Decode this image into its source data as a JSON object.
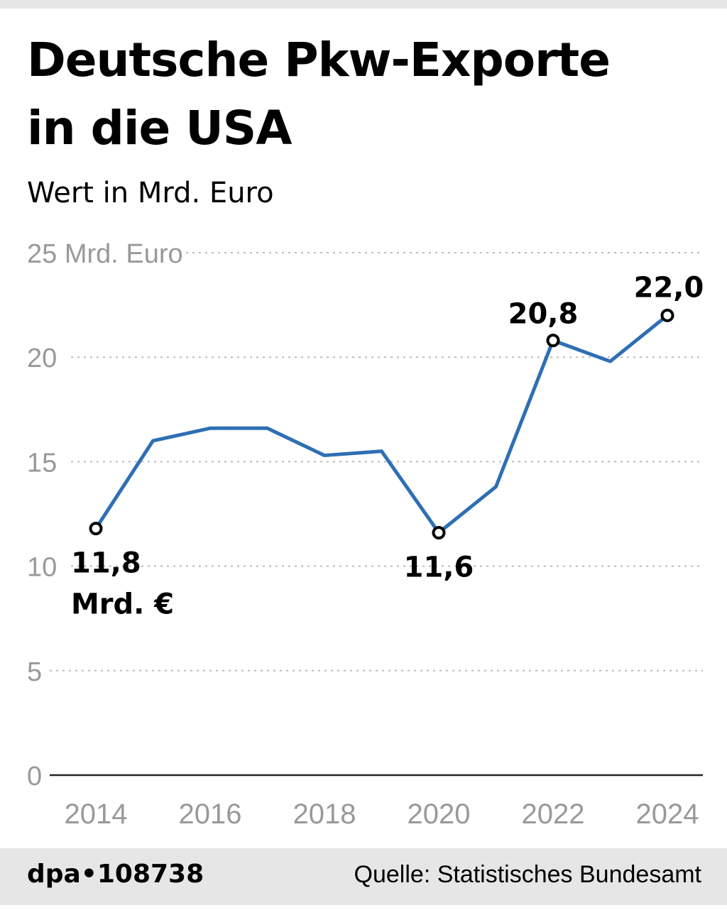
{
  "header": {
    "title_line1": "Deutsche Pkw-Exporte",
    "title_line2": "in die USA",
    "subtitle": "Wert in Mrd. Euro"
  },
  "footer": {
    "credit": "dpa•108738",
    "source": "Quelle: Statistisches Bundesamt"
  },
  "chart_data": {
    "type": "line",
    "title": "Deutsche Pkw-Exporte in die USA",
    "subtitle": "Wert in Mrd. Euro",
    "x": [
      2014,
      2015,
      2016,
      2017,
      2018,
      2019,
      2020,
      2021,
      2022,
      2023,
      2024
    ],
    "series": [
      {
        "values": [
          11.8,
          16.0,
          16.6,
          16.6,
          15.3,
          15.5,
          11.6,
          13.8,
          20.8,
          19.8,
          22.0
        ],
        "color": "#2e6fb5"
      }
    ],
    "xlim": [
      2014,
      2024
    ],
    "ylim": [
      0,
      25
    ],
    "y_ticks": [
      0,
      5,
      10,
      15,
      20,
      25
    ],
    "y_tick_labels": [
      "0",
      "5",
      "10",
      "15",
      "20",
      "25 Mrd. Euro"
    ],
    "x_ticks": [
      2014,
      2016,
      2018,
      2020,
      2022,
      2024
    ],
    "x_tick_labels": [
      "2014",
      "2016",
      "2018",
      "2020",
      "2022",
      "2024"
    ],
    "grid": true,
    "annotations": [
      {
        "x": 2014,
        "label": "11,8",
        "label2": "Mrd. €"
      },
      {
        "x": 2020,
        "label": "11,6"
      },
      {
        "x": 2022,
        "label": "20,8"
      },
      {
        "x": 2024,
        "label": "22,0"
      }
    ]
  }
}
